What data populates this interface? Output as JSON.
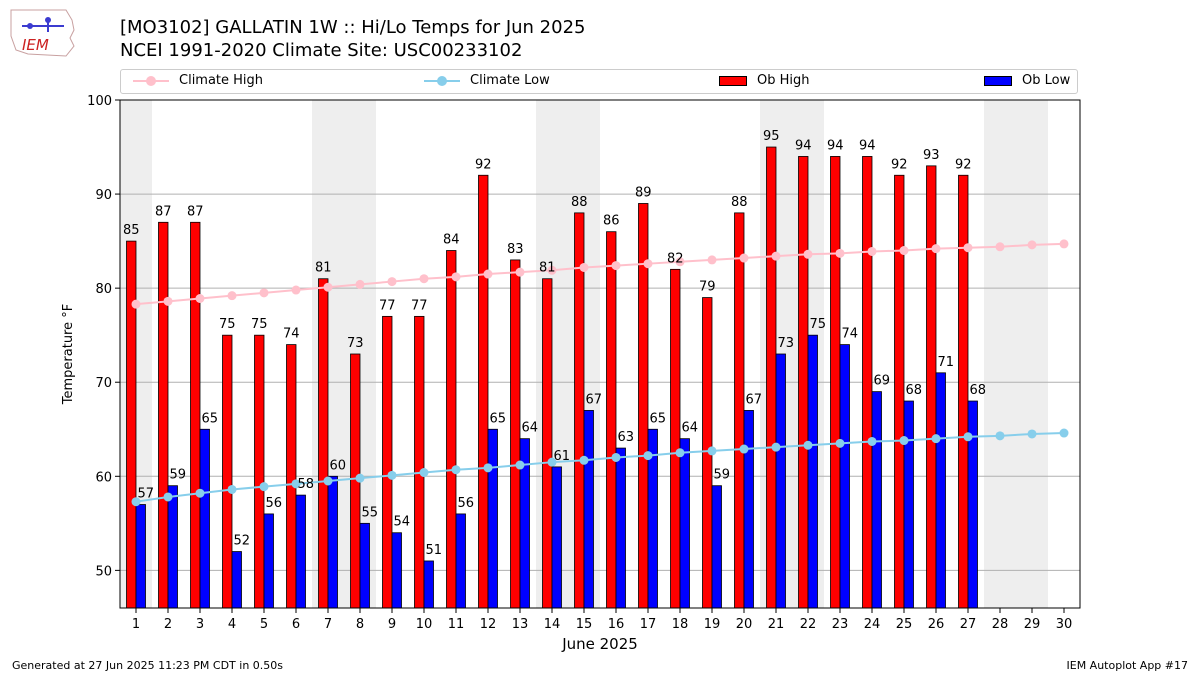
{
  "header": {
    "logo_text": "IEM",
    "title_line1": "[MO3102] GALLATIN 1W :: Hi/Lo Temps for Jun 2025",
    "title_line2": "NCEI 1991-2020 Climate Site: USC00233102"
  },
  "legend": {
    "climate_high": "Climate High",
    "climate_low": "Climate Low",
    "ob_high": "Ob High",
    "ob_low": "Ob Low"
  },
  "footer": {
    "generated": "Generated at 27 Jun 2025 11:23 PM CDT in 0.50s",
    "app": "IEM Autoplot App #17"
  },
  "colors": {
    "climate_high": "#ffc0cb",
    "climate_low": "#87ceeb",
    "ob_high": "#ff0000",
    "ob_low": "#0000ff",
    "weekend_band": "#eeeeee",
    "grid": "#b0b0b0"
  },
  "chart_data": {
    "type": "bar",
    "xlabel": "June 2025",
    "ylabel": "Temperature °F",
    "ylim": [
      46,
      100
    ],
    "yticks": [
      50,
      60,
      70,
      80,
      90,
      100
    ],
    "grid": true,
    "legend_position": "top",
    "days": [
      1,
      2,
      3,
      4,
      5,
      6,
      7,
      8,
      9,
      10,
      11,
      12,
      13,
      14,
      15,
      16,
      17,
      18,
      19,
      20,
      21,
      22,
      23,
      24,
      25,
      26,
      27,
      28,
      29,
      30
    ],
    "weekend_bands": [
      [
        1,
        1
      ],
      [
        7,
        8
      ],
      [
        14,
        15
      ],
      [
        21,
        22
      ],
      [
        28,
        29
      ]
    ],
    "series": [
      {
        "name": "Ob High",
        "kind": "bar",
        "values": [
          85,
          87,
          87,
          75,
          75,
          74,
          81,
          73,
          77,
          77,
          84,
          92,
          83,
          81,
          88,
          86,
          89,
          82,
          79,
          88,
          95,
          94,
          94,
          94,
          92,
          93,
          92
        ]
      },
      {
        "name": "Ob Low",
        "kind": "bar",
        "values": [
          57,
          59,
          65,
          52,
          56,
          58,
          60,
          55,
          54,
          51,
          56,
          65,
          64,
          61,
          67,
          63,
          65,
          64,
          59,
          67,
          73,
          75,
          74,
          69,
          68,
          71,
          68
        ]
      },
      {
        "name": "Climate High",
        "kind": "line",
        "values": [
          78.3,
          78.6,
          78.9,
          79.2,
          79.5,
          79.8,
          80.1,
          80.4,
          80.7,
          81.0,
          81.2,
          81.5,
          81.7,
          81.9,
          82.2,
          82.4,
          82.6,
          82.8,
          83.0,
          83.2,
          83.4,
          83.6,
          83.7,
          83.9,
          84.0,
          84.2,
          84.3,
          84.4,
          84.6,
          84.7
        ]
      },
      {
        "name": "Climate Low",
        "kind": "line",
        "values": [
          57.3,
          57.8,
          58.2,
          58.6,
          58.9,
          59.2,
          59.5,
          59.8,
          60.1,
          60.4,
          60.7,
          60.9,
          61.2,
          61.5,
          61.7,
          62.0,
          62.2,
          62.5,
          62.7,
          62.9,
          63.1,
          63.3,
          63.5,
          63.7,
          63.8,
          64.0,
          64.2,
          64.3,
          64.5,
          64.6
        ]
      }
    ]
  }
}
